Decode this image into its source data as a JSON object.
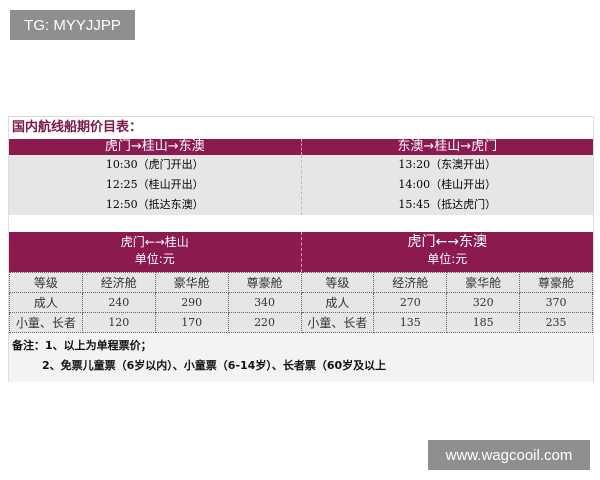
{
  "watermarks": {
    "top_left": "TG: MYYJJPP",
    "bottom_right": "www.wagcooil.com"
  },
  "title": "国内航线船期价目表：",
  "schedule": [
    {
      "route": "虎门→桂山→东澳",
      "times": [
        "10:30（虎门开出）",
        "12:25（桂山开出）",
        "12:50（抵达东澳）"
      ]
    },
    {
      "route": "东澳→桂山→虎门",
      "times": [
        "13:20（东澳开出）",
        "14:00（桂山开出）",
        "15:45（抵达虎门）"
      ]
    }
  ],
  "prices": [
    {
      "route": "虎门←→桂山",
      "unit": "单位:元",
      "headers": [
        "等级",
        "经济舱",
        "豪华舱",
        "尊豪舱"
      ],
      "rows": [
        [
          "成人",
          "240",
          "290",
          "340"
        ],
        [
          "小童、长者",
          "120",
          "170",
          "220"
        ]
      ]
    },
    {
      "route": "虎门←→东澳",
      "unit": "单位:元",
      "headers": [
        "等级",
        "经济舱",
        "豪华舱",
        "尊豪舱"
      ],
      "rows": [
        [
          "成人",
          "270",
          "320",
          "370"
        ],
        [
          "小童、长者",
          "135",
          "185",
          "235"
        ]
      ]
    }
  ],
  "notes": [
    "备注：1、以上为单程票价；",
    "2、免票儿童票（6岁以内）、小童票（6-14岁）、长者票（60岁及以上"
  ],
  "colors": {
    "header": "#8b1a4f",
    "title": "#7a1a45"
  }
}
